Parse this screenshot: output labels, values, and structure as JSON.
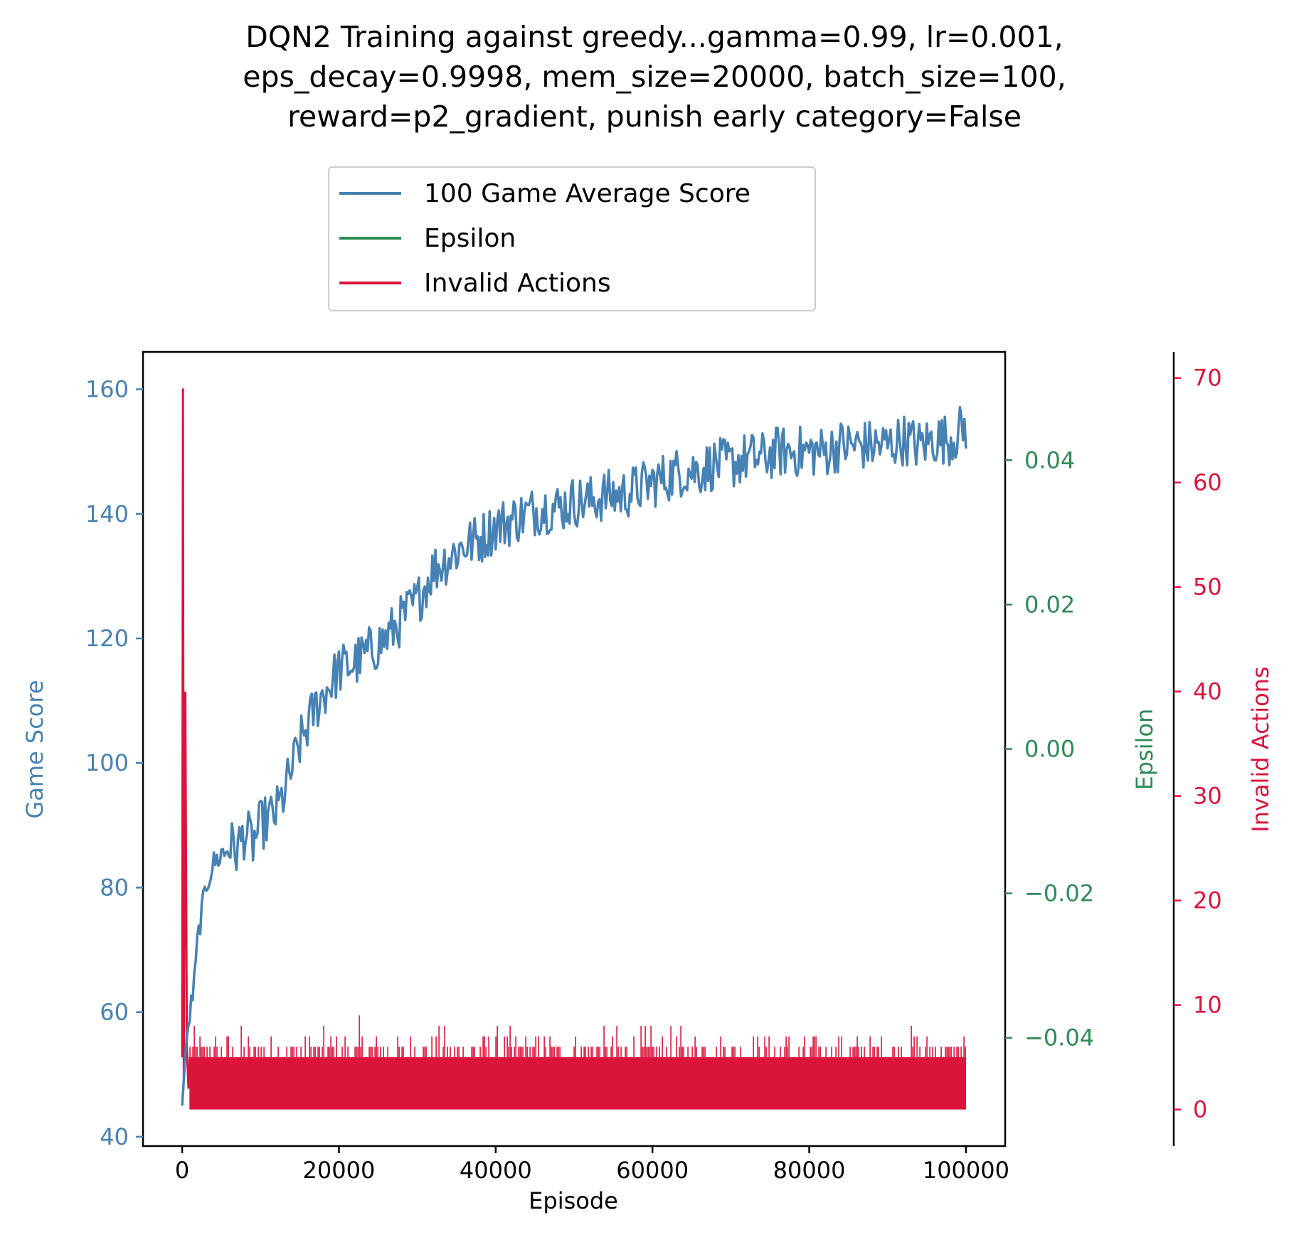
{
  "chart_data": {
    "type": "line",
    "title": [
      "DQN2 Training against greedy...gamma=0.99, lr=0.001,",
      "eps_decay=0.9998, mem_size=20000, batch_size=100,",
      "reward=p2_gradient, punish early category=False"
    ],
    "xlabel": "Episode",
    "xlim": [
      -5000,
      105000
    ],
    "x_ticks": [
      "0",
      "20000",
      "40000",
      "60000",
      "80000",
      "100000"
    ],
    "legend": {
      "placement": "above-plot",
      "entries": [
        "100 Game Average Score",
        "Epsilon",
        "Invalid Actions"
      ]
    },
    "axes": {
      "score": {
        "label": "Game Score",
        "color": "#4682B4",
        "ylim": [
          38.5,
          166
        ],
        "ticks": [
          "40",
          "60",
          "80",
          "100",
          "120",
          "140",
          "160"
        ]
      },
      "epsilon": {
        "label": "Epsilon",
        "color": "#2E8B57",
        "ylim": [
          -0.055,
          0.055
        ],
        "ticks": [
          "−0.04",
          "−0.02",
          "0.00",
          "0.02",
          "0.04"
        ]
      },
      "invalid": {
        "label": "Invalid Actions",
        "color": "#DC143C",
        "ylim": [
          -3.5,
          72.5
        ],
        "ticks": [
          "0",
          "10",
          "20",
          "30",
          "40",
          "50",
          "60",
          "70"
        ]
      }
    },
    "series": [
      {
        "name": "100 Game Average Score",
        "axis": "score",
        "color": "#4682B4",
        "x": [
          0,
          500,
          1000,
          1500,
          2000,
          3000,
          4000,
          5000,
          6000,
          7000,
          8000,
          9000,
          10000,
          11000,
          12000,
          13000,
          14000,
          15000,
          16000,
          17000,
          18000,
          19000,
          20000,
          22000,
          24000,
          26000,
          28000,
          30000,
          32000,
          34000,
          36000,
          38000,
          40000,
          42000,
          44000,
          46000,
          48000,
          50000,
          52000,
          54000,
          56000,
          58000,
          60000,
          62000,
          64000,
          66000,
          68000,
          70000,
          72000,
          74000,
          76000,
          78000,
          80000,
          82000,
          84000,
          86000,
          88000,
          90000,
          92000,
          94000,
          96000,
          98000,
          100000
        ],
        "values": [
          45,
          55,
          60,
          64,
          72,
          80,
          84,
          85,
          87,
          86,
          89,
          87,
          90,
          91,
          92,
          95,
          99,
          103,
          106,
          109,
          111,
          113,
          115,
          116,
          118,
          120,
          123,
          126,
          131,
          133,
          135,
          136,
          138,
          139,
          140,
          141,
          141,
          142,
          142,
          143,
          143,
          144,
          145,
          146,
          147,
          147,
          148,
          148,
          149,
          149,
          150,
          150,
          150,
          150,
          151,
          151,
          151,
          151,
          152,
          151,
          152,
          152,
          154
        ]
      },
      {
        "name": "Epsilon",
        "axis": "epsilon",
        "color": "#2E8B57",
        "x": [],
        "values": []
      },
      {
        "name": "Invalid Actions",
        "axis": "invalid",
        "color": "#DC143C",
        "x": [
          0,
          100,
          200,
          400,
          600,
          800,
          1000
        ],
        "values": [
          5,
          69,
          3,
          40,
          6,
          2,
          5
        ],
        "band": {
          "x_start": 1000,
          "x_end": 100000,
          "low": 0,
          "typical_high": 5,
          "peak": 9
        }
      }
    ]
  },
  "colors": {
    "score": "#4682B4",
    "epsilon": "#2E8B57",
    "invalid": "#DC143C"
  }
}
